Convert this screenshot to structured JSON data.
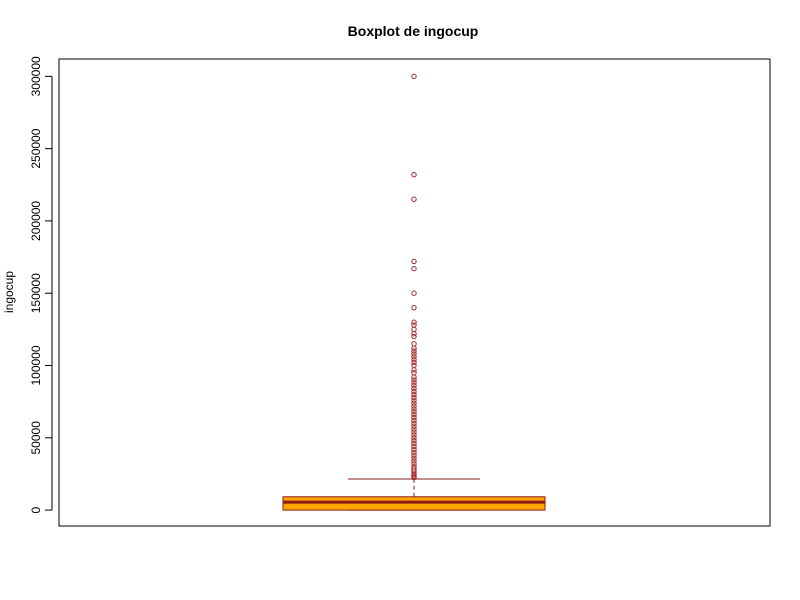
{
  "chart_data": {
    "type": "boxplot",
    "title": "Boxplot de ingocup",
    "xlabel": "",
    "ylabel": "ingocup",
    "ylim": [
      -11000,
      312000
    ],
    "yticks": [
      0,
      50000,
      100000,
      150000,
      200000,
      250000,
      300000
    ],
    "grid": false,
    "colors": {
      "box_fill": "#FFA500",
      "box_border": "#8B1A1A",
      "median": "#8B1A1A",
      "outliers": "#A52A2A",
      "whisker": "#8B1A1A"
    },
    "box": {
      "q1": 0,
      "median": 5500,
      "q3": 9200,
      "lower_whisker": 0,
      "upper_whisker": 21500
    },
    "outliers": [
      300000,
      232000,
      215000,
      172000,
      167000,
      150000,
      140000,
      130000,
      128000,
      125000,
      122000,
      120000,
      115000,
      112000,
      110000,
      108000,
      106000,
      104000,
      102000,
      100000,
      97000,
      95000,
      92000,
      90000,
      88000,
      86000,
      84000,
      82000,
      80000,
      78000,
      76000,
      74000,
      72000,
      70000,
      68000,
      66000,
      64000,
      62000,
      60000,
      58000,
      56000,
      54000,
      52000,
      50000,
      48000,
      46000,
      44000,
      42000,
      40000,
      38000,
      36000,
      34000,
      32000,
      30000,
      28500,
      27000,
      25500,
      24500,
      23500,
      22500
    ]
  }
}
